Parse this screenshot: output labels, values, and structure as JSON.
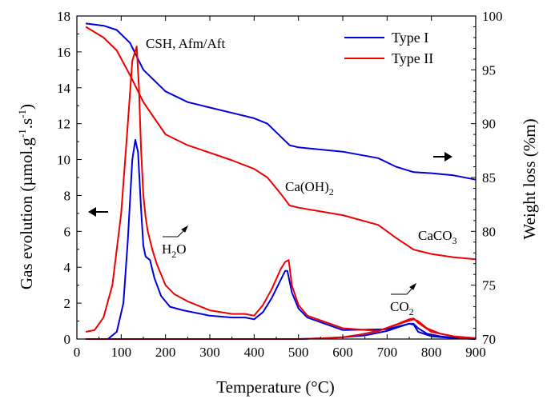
{
  "chart_data": {
    "type": "line",
    "xlabel": "Temperature (°C)",
    "ylabel_left": "Gas evolution (µmol.g",
    "ylabel_left_sup1": "-1",
    "ylabel_left_mid": ".s",
    "ylabel_left_sup2": "-1",
    "ylabel_left_end": ")",
    "ylabel_right": "Weight loss (%m)",
    "xlim": [
      0,
      900
    ],
    "ylim_left": [
      0,
      18
    ],
    "ylim_right": [
      70,
      100
    ],
    "x_ticks": [
      0,
      100,
      200,
      300,
      400,
      500,
      600,
      700,
      800,
      900
    ],
    "y_left_ticks": [
      0,
      2,
      4,
      6,
      8,
      10,
      12,
      14,
      16,
      18
    ],
    "y_right_ticks": [
      70,
      75,
      80,
      85,
      90,
      95,
      100
    ],
    "legend_placement": "top-right",
    "legend": [
      {
        "name": "Type I",
        "color": "#0000dd"
      },
      {
        "name": "Type II",
        "color": "#ee0000"
      }
    ],
    "annotations": {
      "csh": "CSH, Afm/Aft",
      "caoh2": "Ca(OH)",
      "caoh2_sub": "2",
      "caco3": "CaCO",
      "caco3_sub": "3",
      "h2o": "H",
      "h2o_sub": "2",
      "h2o_end": "O",
      "co2": "CO",
      "co2_sub": "2"
    },
    "series": [
      {
        "name": "Type I",
        "kind": "weight_loss",
        "axis": "right",
        "color": "#0000dd",
        "x": [
          20,
          60,
          90,
          120,
          150,
          160,
          180,
          200,
          250,
          300,
          350,
          400,
          430,
          460,
          480,
          500,
          600,
          680,
          720,
          760,
          800,
          850,
          900
        ],
        "y": [
          99.3,
          99.1,
          98.7,
          97.5,
          95.0,
          94.6,
          93.8,
          93.0,
          92.0,
          91.5,
          91.0,
          90.5,
          90.0,
          88.8,
          88.0,
          87.8,
          87.4,
          86.8,
          86.0,
          85.5,
          85.4,
          85.2,
          84.8
        ]
      },
      {
        "name": "Type II",
        "kind": "weight_loss",
        "axis": "right",
        "color": "#ee0000",
        "x": [
          20,
          60,
          90,
          120,
          150,
          180,
          200,
          250,
          300,
          350,
          400,
          430,
          460,
          480,
          500,
          600,
          680,
          720,
          760,
          800,
          850,
          900
        ],
        "y": [
          99.0,
          98.0,
          96.8,
          94.5,
          92.0,
          90.2,
          89.0,
          88.0,
          87.3,
          86.6,
          85.8,
          85.0,
          83.5,
          82.4,
          82.2,
          81.5,
          80.6,
          79.4,
          78.3,
          77.9,
          77.6,
          77.4
        ]
      },
      {
        "name": "Type I",
        "kind": "gas_evolution",
        "axis": "left",
        "color": "#0000dd",
        "x": [
          20,
          70,
          90,
          105,
          115,
          125,
          132,
          138,
          145,
          150,
          155,
          165,
          175,
          190,
          210,
          240,
          300,
          350,
          380,
          400,
          420,
          440,
          460,
          470,
          475,
          485,
          500,
          520,
          600,
          700,
          750,
          760,
          770,
          800,
          850,
          900
        ],
        "y": [
          0.0,
          0.0,
          0.4,
          2.0,
          5.5,
          10.0,
          11.1,
          10.4,
          7.2,
          5.2,
          4.6,
          4.4,
          3.4,
          2.4,
          1.8,
          1.6,
          1.3,
          1.2,
          1.2,
          1.1,
          1.5,
          2.3,
          3.3,
          3.8,
          3.8,
          2.6,
          1.7,
          1.2,
          0.5,
          0.55,
          0.85,
          0.8,
          0.4,
          0.15,
          0.05,
          0.0
        ]
      },
      {
        "name": "Type II",
        "kind": "gas_evolution",
        "axis": "left",
        "color": "#ee0000",
        "x": [
          20,
          40,
          60,
          80,
          100,
          115,
          125,
          135,
          140,
          145,
          150,
          155,
          160,
          170,
          180,
          200,
          220,
          250,
          300,
          350,
          380,
          400,
          420,
          440,
          460,
          470,
          478,
          485,
          500,
          520,
          600,
          680,
          720,
          750,
          760,
          770,
          800,
          850,
          900
        ],
        "y": [
          0.4,
          0.5,
          1.2,
          3.0,
          7.0,
          12.0,
          15.5,
          16.3,
          14.0,
          10.5,
          8.0,
          6.8,
          6.0,
          5.0,
          4.2,
          3.0,
          2.5,
          2.1,
          1.6,
          1.4,
          1.4,
          1.3,
          1.9,
          2.8,
          3.9,
          4.3,
          4.4,
          3.0,
          1.9,
          1.3,
          0.6,
          0.45,
          0.8,
          1.1,
          1.15,
          0.9,
          0.4,
          0.15,
          0.05
        ]
      },
      {
        "name": "Type I",
        "kind": "co2_evolution",
        "axis": "left",
        "color": "#0000dd",
        "x": [
          20,
          500,
          560,
          600,
          650,
          700,
          730,
          750,
          760,
          770,
          790,
          820,
          860,
          900
        ],
        "y": [
          0.0,
          0.0,
          0.05,
          0.1,
          0.2,
          0.45,
          0.7,
          0.85,
          0.85,
          0.6,
          0.3,
          0.15,
          0.05,
          0.0
        ]
      },
      {
        "name": "Type II",
        "kind": "co2_evolution",
        "axis": "left",
        "color": "#ee0000",
        "x": [
          20,
          500,
          560,
          600,
          640,
          680,
          710,
          740,
          760,
          770,
          790,
          820,
          860,
          900
        ],
        "y": [
          0.0,
          0.0,
          0.05,
          0.1,
          0.25,
          0.45,
          0.7,
          0.95,
          1.1,
          1.0,
          0.6,
          0.3,
          0.1,
          0.05
        ]
      }
    ]
  }
}
